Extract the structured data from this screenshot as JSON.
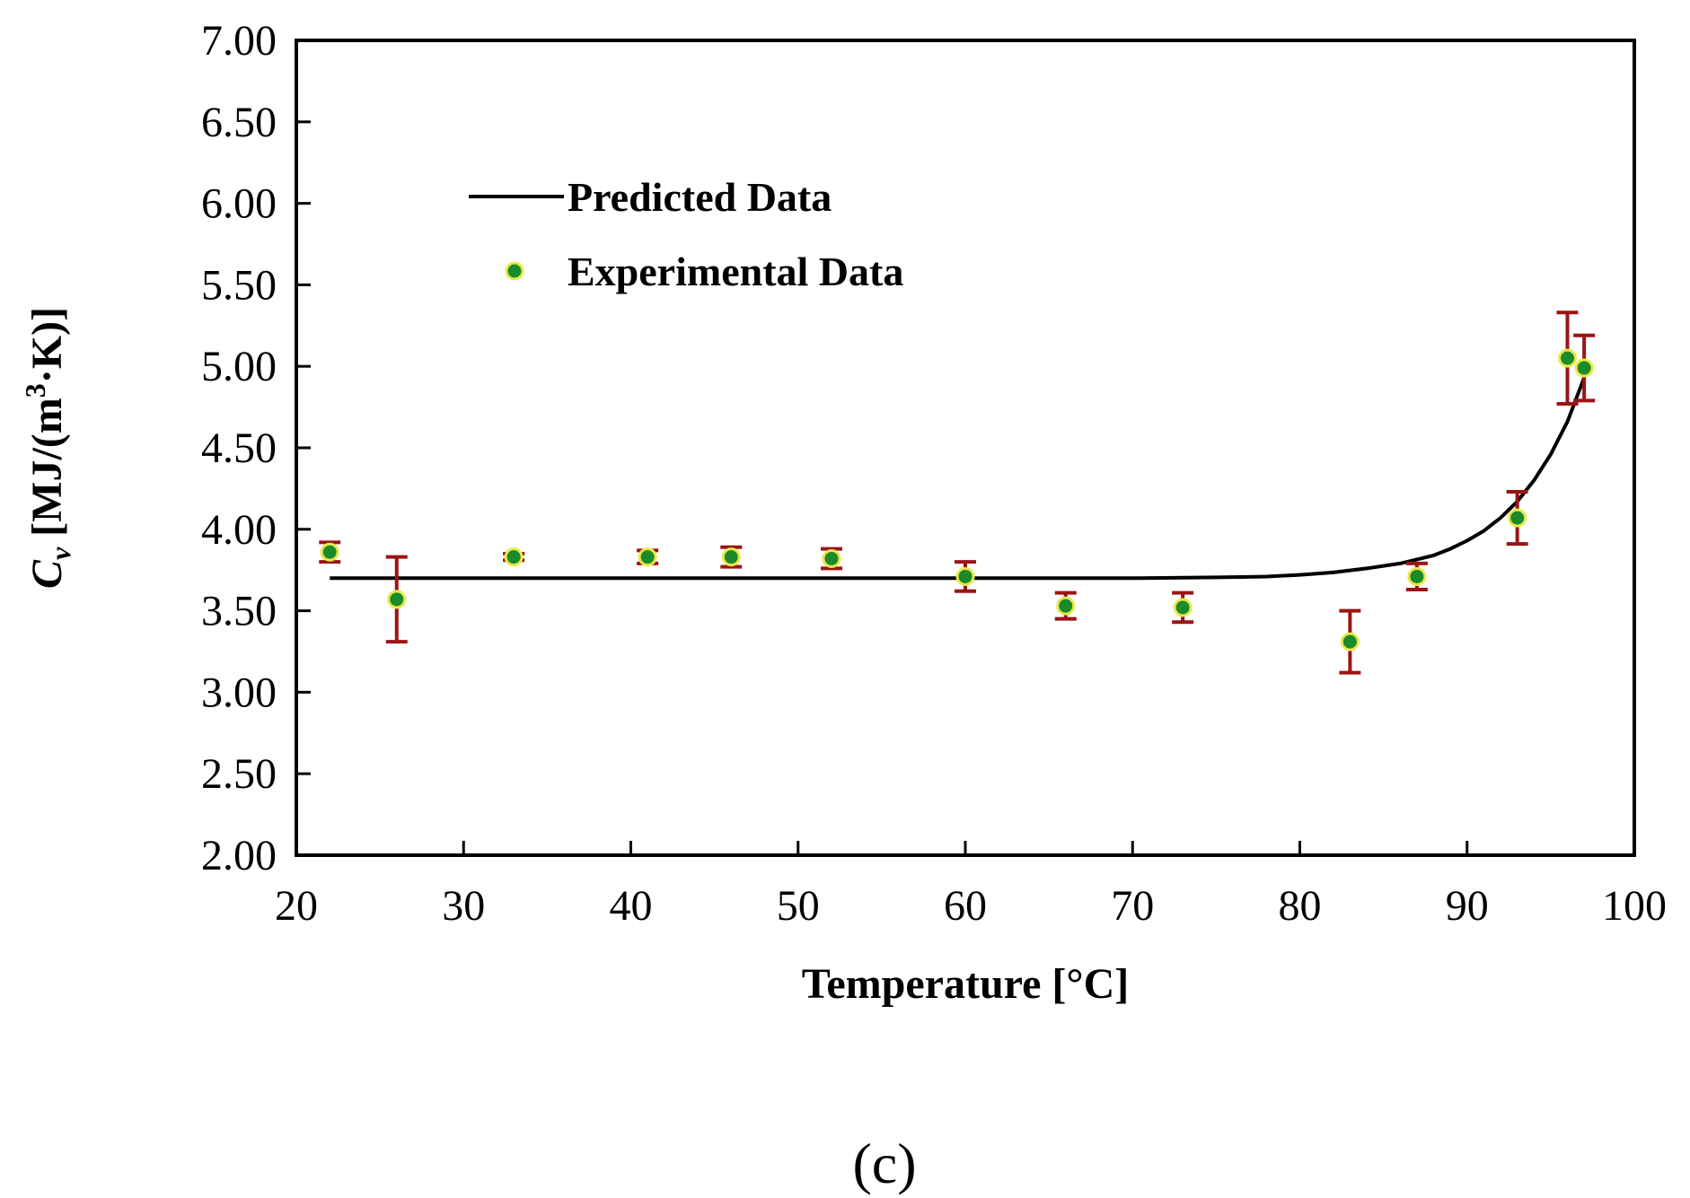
{
  "chart_data": {
    "type": "scatter",
    "title": "",
    "xlabel": "Temperature [°C]",
    "ylabel_symbol": "C",
    "ylabel_subscript": "v",
    "ylabel_unit_pre": " [MJ/(m",
    "ylabel_unit_sup": "3",
    "ylabel_unit_post": "·K)]",
    "xlim": [
      20,
      100
    ],
    "ylim": [
      2.0,
      7.0
    ],
    "x_ticks": [
      "20",
      "30",
      "40",
      "50",
      "60",
      "70",
      "80",
      "90",
      "100"
    ],
    "y_ticks": [
      "2.00",
      "2.50",
      "3.00",
      "3.50",
      "4.00",
      "4.50",
      "5.00",
      "5.50",
      "6.00",
      "6.50",
      "7.00"
    ],
    "grid": false,
    "legend_position": "top-left",
    "series": [
      {
        "name": "Predicted Data",
        "kind": "line",
        "color": "#000000",
        "x": [
          22,
          30,
          40,
          50,
          60,
          70,
          75,
          78,
          80,
          82,
          84,
          86,
          88,
          89,
          90,
          91,
          92,
          93,
          94,
          95,
          96,
          97
        ],
        "y": [
          3.7,
          3.7,
          3.7,
          3.7,
          3.7,
          3.7,
          3.705,
          3.71,
          3.72,
          3.735,
          3.76,
          3.79,
          3.84,
          3.88,
          3.93,
          3.99,
          4.07,
          4.17,
          4.3,
          4.46,
          4.66,
          4.93
        ]
      },
      {
        "name": "Experimental Data",
        "kind": "scatter",
        "color": "#1a8a2a",
        "edge_color": "#e8e84a",
        "error_color": "#9b1414",
        "x": [
          22,
          26,
          33,
          41,
          46,
          52,
          60,
          66,
          73,
          83,
          87,
          93,
          96,
          97
        ],
        "y": [
          3.86,
          3.57,
          3.83,
          3.83,
          3.83,
          3.82,
          3.71,
          3.53,
          3.52,
          3.31,
          3.71,
          4.07,
          5.05,
          4.99
        ],
        "y_err": [
          0.06,
          0.26,
          0.02,
          0.04,
          0.06,
          0.06,
          0.09,
          0.08,
          0.09,
          0.19,
          0.08,
          0.16,
          0.28,
          0.2
        ]
      }
    ],
    "panel_label": "(c)"
  }
}
